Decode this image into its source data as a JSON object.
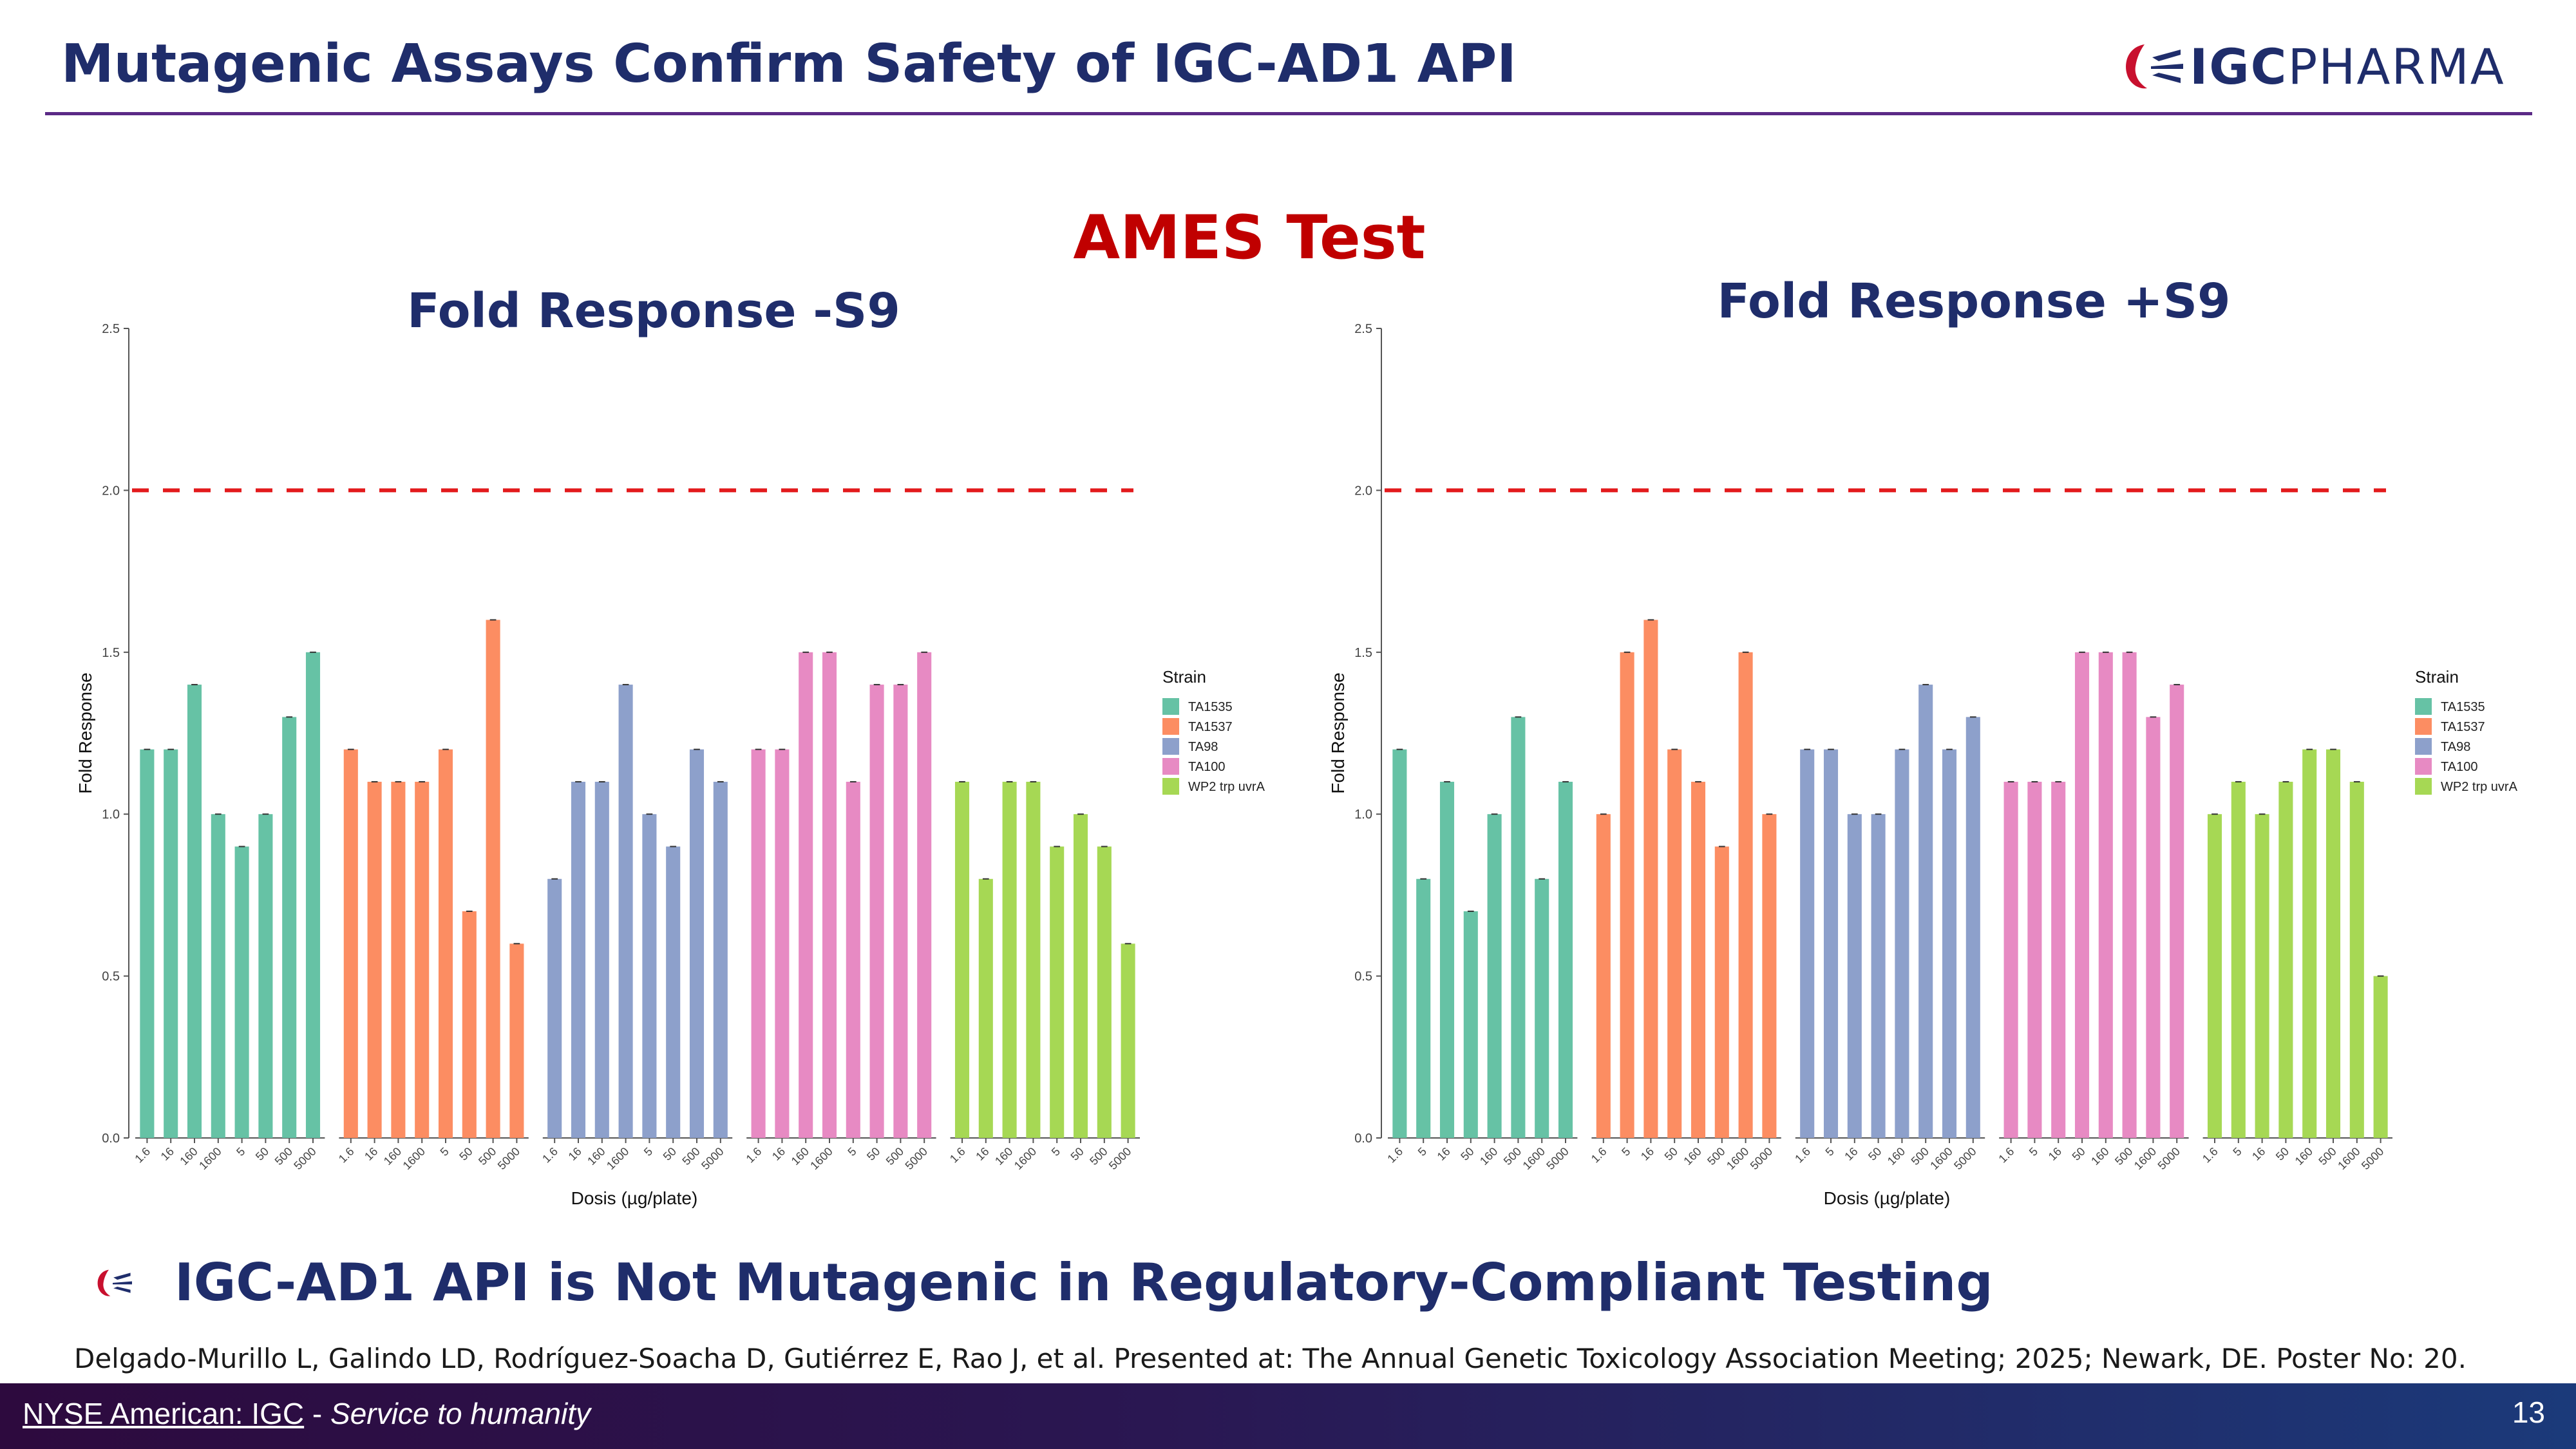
{
  "header": {
    "title": "Mutagenic Assays Confirm Safety of IGC-AD1 API",
    "logo_bold": "IGC",
    "logo_rest": "PHARMA"
  },
  "section_title": "AMES Test",
  "colors": {
    "TA1535": "#66c2a5",
    "TA1537": "#fc8d62",
    "TA98": "#8da0cb",
    "TA100": "#e78ac3",
    "WP2 trp uvrA": "#a6d854",
    "threshold": "#e31a1c"
  },
  "chart_data": [
    {
      "type": "bar",
      "title": "Fold Response -S9",
      "xlabel": "Dosis (µg/plate)",
      "ylabel": "Fold Response",
      "ylim": [
        0,
        2.5
      ],
      "yticks": [
        "0.0",
        "0.5",
        "1.0",
        "1.5",
        "2.0",
        "2.5"
      ],
      "threshold": 2.0,
      "legend": {
        "title": "Strain",
        "position": "right"
      },
      "groups": [
        {
          "name": "TA1535",
          "categories": [
            "1.6",
            "16",
            "160",
            "1600",
            "5",
            "50",
            "500",
            "5000"
          ],
          "values": [
            1.2,
            1.2,
            1.4,
            1.0,
            0.9,
            1.0,
            1.3,
            1.5
          ]
        },
        {
          "name": "TA1537",
          "categories": [
            "1.6",
            "16",
            "160",
            "1600",
            "5",
            "50",
            "500",
            "5000"
          ],
          "values": [
            1.2,
            1.1,
            1.1,
            1.1,
            1.2,
            0.7,
            1.6,
            0.6
          ]
        },
        {
          "name": "TA98",
          "categories": [
            "1.6",
            "16",
            "160",
            "1600",
            "5",
            "50",
            "500",
            "5000"
          ],
          "values": [
            0.8,
            1.1,
            1.1,
            1.4,
            1.0,
            0.9,
            1.2,
            1.1
          ]
        },
        {
          "name": "TA100",
          "categories": [
            "1.6",
            "16",
            "160",
            "1600",
            "5",
            "50",
            "500",
            "5000"
          ],
          "values": [
            1.2,
            1.2,
            1.5,
            1.5,
            1.1,
            1.4,
            1.4,
            1.5
          ]
        },
        {
          "name": "WP2 trp uvrA",
          "categories": [
            "1.6",
            "16",
            "160",
            "1600",
            "5",
            "50",
            "500",
            "5000"
          ],
          "values": [
            1.1,
            0.8,
            1.1,
            1.1,
            0.9,
            1.0,
            0.9,
            0.6
          ]
        }
      ]
    },
    {
      "type": "bar",
      "title": "Fold Response +S9",
      "xlabel": "Dosis (µg/plate)",
      "ylabel": "Fold Response",
      "ylim": [
        0,
        2.5
      ],
      "yticks": [
        "0.0",
        "0.5",
        "1.0",
        "1.5",
        "2.0",
        "2.5"
      ],
      "threshold": 2.0,
      "legend": {
        "title": "Strain",
        "position": "right"
      },
      "groups": [
        {
          "name": "TA1535",
          "categories": [
            "1.6",
            "5",
            "16",
            "50",
            "160",
            "500",
            "1600",
            "5000"
          ],
          "values": [
            1.2,
            0.8,
            1.1,
            0.7,
            1.0,
            1.3,
            0.8,
            1.1
          ]
        },
        {
          "name": "TA1537",
          "categories": [
            "1.6",
            "5",
            "16",
            "50",
            "160",
            "500",
            "1600",
            "5000"
          ],
          "values": [
            1.0,
            1.5,
            1.6,
            1.2,
            1.1,
            0.9,
            1.5,
            1.0
          ]
        },
        {
          "name": "TA98",
          "categories": [
            "1.6",
            "5",
            "16",
            "50",
            "160",
            "500",
            "1600",
            "5000"
          ],
          "values": [
            1.2,
            1.2,
            1.0,
            1.0,
            1.2,
            1.4,
            1.2,
            1.3
          ]
        },
        {
          "name": "TA100",
          "categories": [
            "1.6",
            "5",
            "16",
            "50",
            "160",
            "500",
            "1600",
            "5000"
          ],
          "values": [
            1.1,
            1.1,
            1.1,
            1.5,
            1.5,
            1.5,
            1.3,
            1.4
          ]
        },
        {
          "name": "WP2 trp uvrA",
          "categories": [
            "1.6",
            "5",
            "16",
            "50",
            "160",
            "500",
            "1600",
            "5000"
          ],
          "values": [
            1.0,
            1.1,
            1.0,
            1.1,
            1.2,
            1.2,
            1.1,
            0.5
          ]
        }
      ]
    }
  ],
  "conclusion": "IGC-AD1 API is Not Mutagenic in Regulatory-Compliant Testing",
  "citation": "Delgado-Murillo L, Galindo LD, Rodríguez-Soacha D, Gutiérrez E, Rao J, et al. Presented at: The Annual Genetic Toxicology Association Meeting; 2025; Newark, DE. Poster No: 20.",
  "footer": {
    "exchange": "NYSE American:  IGC",
    "separator": " - ",
    "tagline": "Service to humanity",
    "page_number": "13"
  }
}
